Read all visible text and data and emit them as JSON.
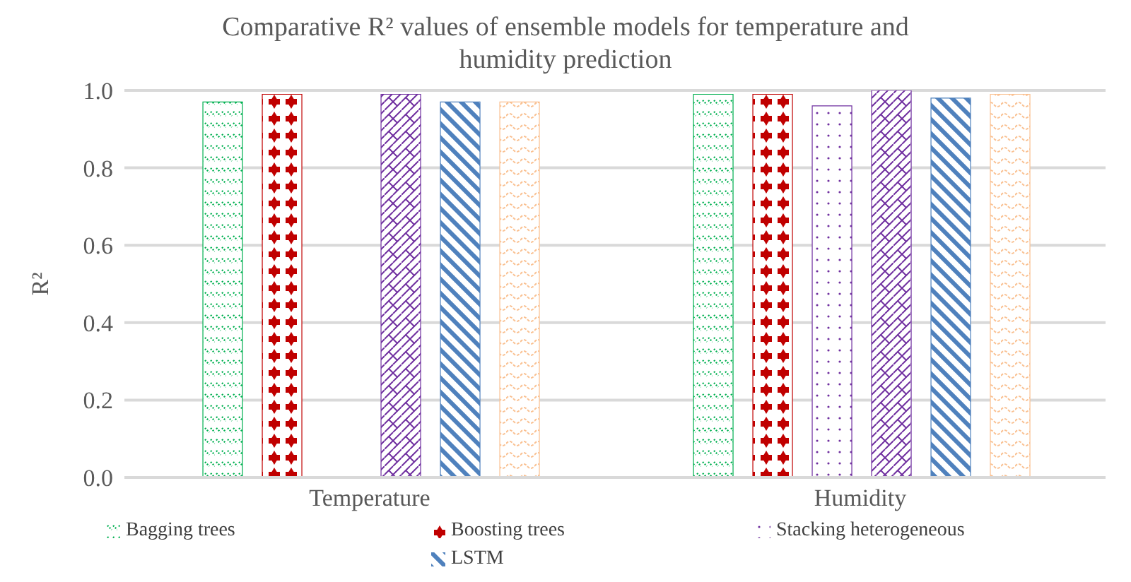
{
  "chart_data": {
    "type": "bar",
    "title": "Comparative R² values of ensemble models for temperature and humidity prediction",
    "ylabel": "R²",
    "categories": [
      "Temperature",
      "Humidity"
    ],
    "series": [
      {
        "name": "Bagging trees",
        "color": "#00b050",
        "values": [
          0.97,
          0.99
        ]
      },
      {
        "name": "Boosting trees",
        "color": "#c00000",
        "values": [
          0.99,
          0.99
        ]
      },
      {
        "name": "Stacking heterogeneous",
        "color": "#7030a0",
        "values": [
          null,
          0.96
        ]
      },
      {
        "color": "#7030a0",
        "values": [
          0.99,
          1.0
        ]
      },
      {
        "name": "LSTM",
        "color": "#4f81bd",
        "values": [
          0.97,
          0.98
        ]
      },
      {
        "color": "#fac090",
        "values": [
          0.97,
          0.99
        ]
      }
    ],
    "ylim": [
      0,
      1
    ],
    "yticks": [
      {
        "value": 0,
        "label": "0.0"
      },
      {
        "value": 0.2,
        "label": "0.2"
      },
      {
        "value": 0.4,
        "label": "0.4"
      },
      {
        "value": 0.6,
        "label": "0.6"
      },
      {
        "value": 0.8,
        "label": "0.8"
      },
      {
        "value": 1,
        "label": "1.0"
      }
    ],
    "grid": "y",
    "legend": "bottom"
  }
}
